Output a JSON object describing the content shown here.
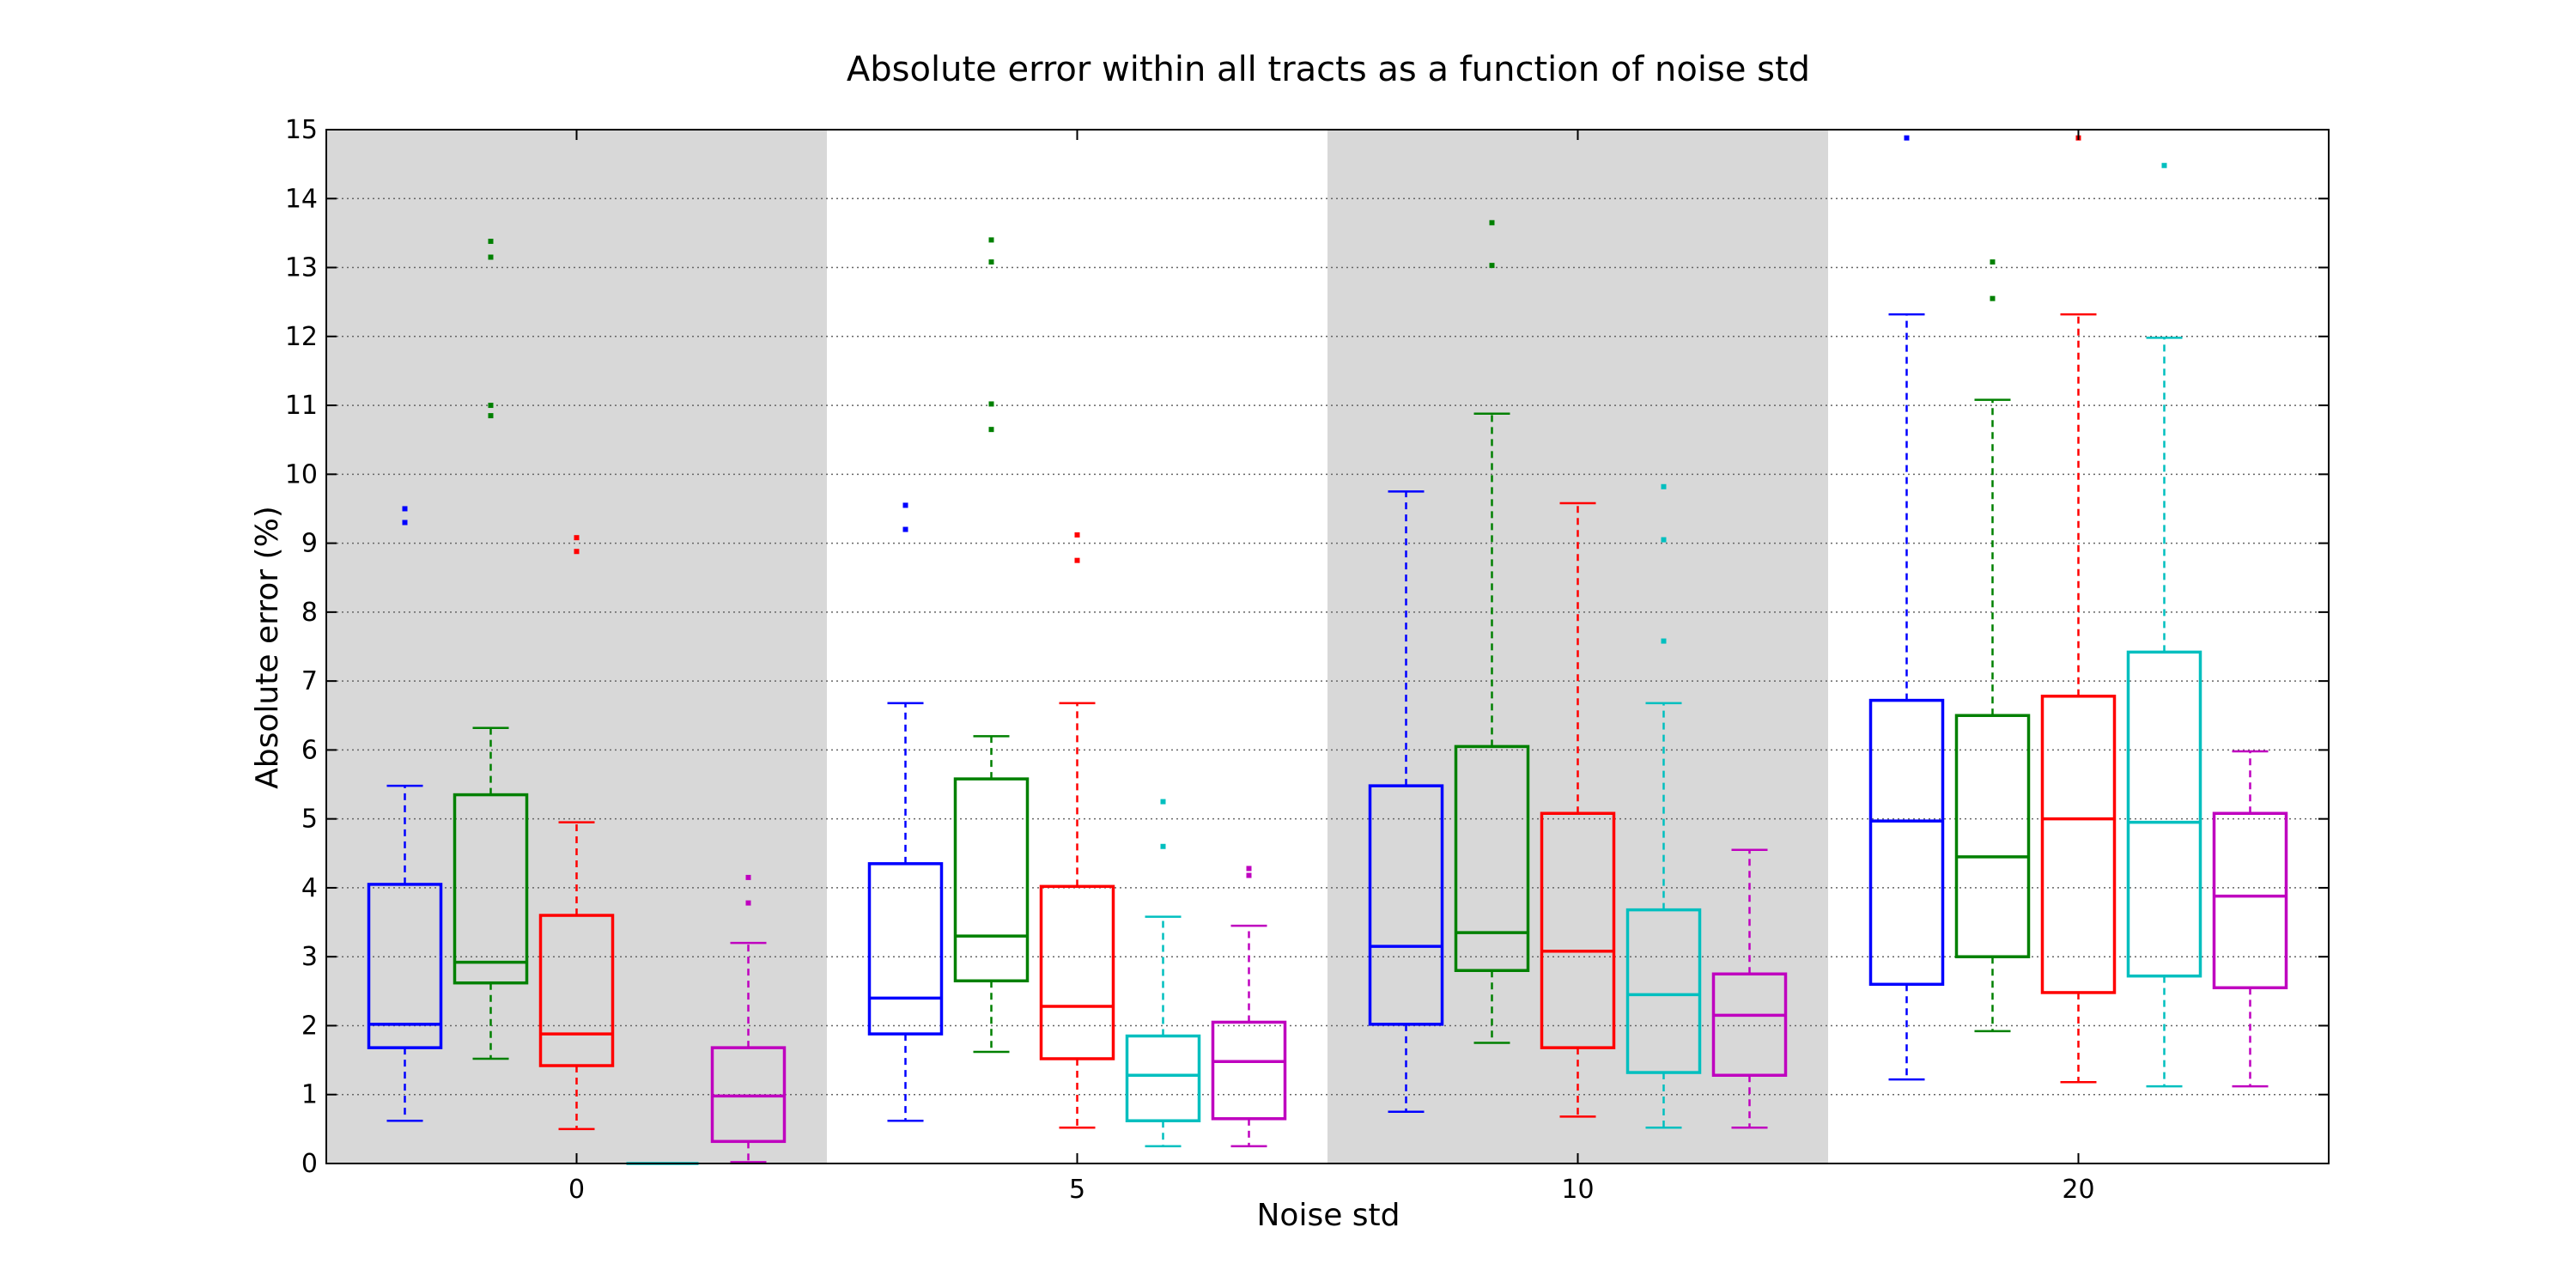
{
  "chart_data": {
    "type": "box",
    "title": "Absolute error within all tracts as a function of noise std",
    "xlabel": "Noise std",
    "ylabel": "Absolute error (%)",
    "ylim": [
      0,
      15
    ],
    "yticks": [
      0,
      1,
      2,
      3,
      4,
      5,
      6,
      7,
      8,
      9,
      10,
      11,
      12,
      13,
      14,
      15
    ],
    "grid": "horizontal-dotted",
    "categories": [
      "0",
      "5",
      "10",
      "20"
    ],
    "shaded_groups": [
      0,
      2
    ],
    "colors": [
      "#0000ff",
      "#008000",
      "#ff0000",
      "#00bfbf",
      "#bf00bf"
    ],
    "series": [
      {
        "boxes": [
          {
            "whislo": 0.62,
            "q1": 1.68,
            "med": 2.02,
            "q3": 4.05,
            "whishi": 5.48,
            "fliers": [
              9.3,
              9.5
            ]
          },
          {
            "whislo": 0.62,
            "q1": 1.88,
            "med": 2.4,
            "q3": 4.35,
            "whishi": 6.68,
            "fliers": [
              9.2,
              9.55
            ]
          },
          {
            "whislo": 0.75,
            "q1": 2.02,
            "med": 3.15,
            "q3": 5.48,
            "whishi": 9.75,
            "fliers": []
          },
          {
            "whislo": 1.22,
            "q1": 2.6,
            "med": 4.97,
            "q3": 6.72,
            "whishi": 12.32,
            "fliers": [
              14.88
            ]
          }
        ]
      },
      {
        "boxes": [
          {
            "whislo": 1.52,
            "q1": 2.62,
            "med": 2.92,
            "q3": 5.35,
            "whishi": 6.32,
            "fliers": [
              10.85,
              11.0,
              13.15,
              13.38
            ]
          },
          {
            "whislo": 1.62,
            "q1": 2.65,
            "med": 3.3,
            "q3": 5.58,
            "whishi": 6.2,
            "fliers": [
              10.65,
              11.02,
              13.08,
              13.4
            ]
          },
          {
            "whislo": 1.75,
            "q1": 2.8,
            "med": 3.35,
            "q3": 6.05,
            "whishi": 10.88,
            "fliers": [
              13.03,
              13.65
            ]
          },
          {
            "whislo": 1.92,
            "q1": 3.0,
            "med": 4.45,
            "q3": 6.5,
            "whishi": 11.08,
            "fliers": [
              12.55,
              13.08
            ]
          }
        ]
      },
      {
        "boxes": [
          {
            "whislo": 0.5,
            "q1": 1.42,
            "med": 1.88,
            "q3": 3.6,
            "whishi": 4.95,
            "fliers": [
              8.88,
              9.08
            ]
          },
          {
            "whislo": 0.52,
            "q1": 1.52,
            "med": 2.28,
            "q3": 4.02,
            "whishi": 6.68,
            "fliers": [
              8.75,
              9.12
            ]
          },
          {
            "whislo": 0.68,
            "q1": 1.68,
            "med": 3.08,
            "q3": 5.08,
            "whishi": 9.58,
            "fliers": []
          },
          {
            "whislo": 1.18,
            "q1": 2.48,
            "med": 5.0,
            "q3": 6.78,
            "whishi": 12.32,
            "fliers": [
              14.88
            ]
          }
        ]
      },
      {
        "boxes": [
          {
            "whislo": 0.0,
            "q1": 0.0,
            "med": 0.0,
            "q3": 0.0,
            "whishi": 0.0,
            "fliers": []
          },
          {
            "whislo": 0.25,
            "q1": 0.62,
            "med": 1.28,
            "q3": 1.85,
            "whishi": 3.58,
            "fliers": [
              4.6,
              5.25
            ]
          },
          {
            "whislo": 0.52,
            "q1": 1.32,
            "med": 2.45,
            "q3": 3.68,
            "whishi": 6.68,
            "fliers": [
              7.58,
              9.05,
              9.82
            ]
          },
          {
            "whislo": 1.12,
            "q1": 2.72,
            "med": 4.95,
            "q3": 7.42,
            "whishi": 11.98,
            "fliers": [
              14.48
            ]
          }
        ]
      },
      {
        "boxes": [
          {
            "whislo": 0.02,
            "q1": 0.32,
            "med": 0.98,
            "q3": 1.68,
            "whishi": 3.2,
            "fliers": [
              3.78,
              4.15
            ]
          },
          {
            "whislo": 0.25,
            "q1": 0.65,
            "med": 1.48,
            "q3": 2.05,
            "whishi": 3.45,
            "fliers": [
              4.18,
              4.28
            ]
          },
          {
            "whislo": 0.52,
            "q1": 1.28,
            "med": 2.15,
            "q3": 2.75,
            "whishi": 4.55,
            "fliers": []
          },
          {
            "whislo": 1.12,
            "q1": 2.55,
            "med": 3.88,
            "q3": 5.08,
            "whishi": 5.98,
            "fliers": []
          }
        ]
      }
    ]
  }
}
